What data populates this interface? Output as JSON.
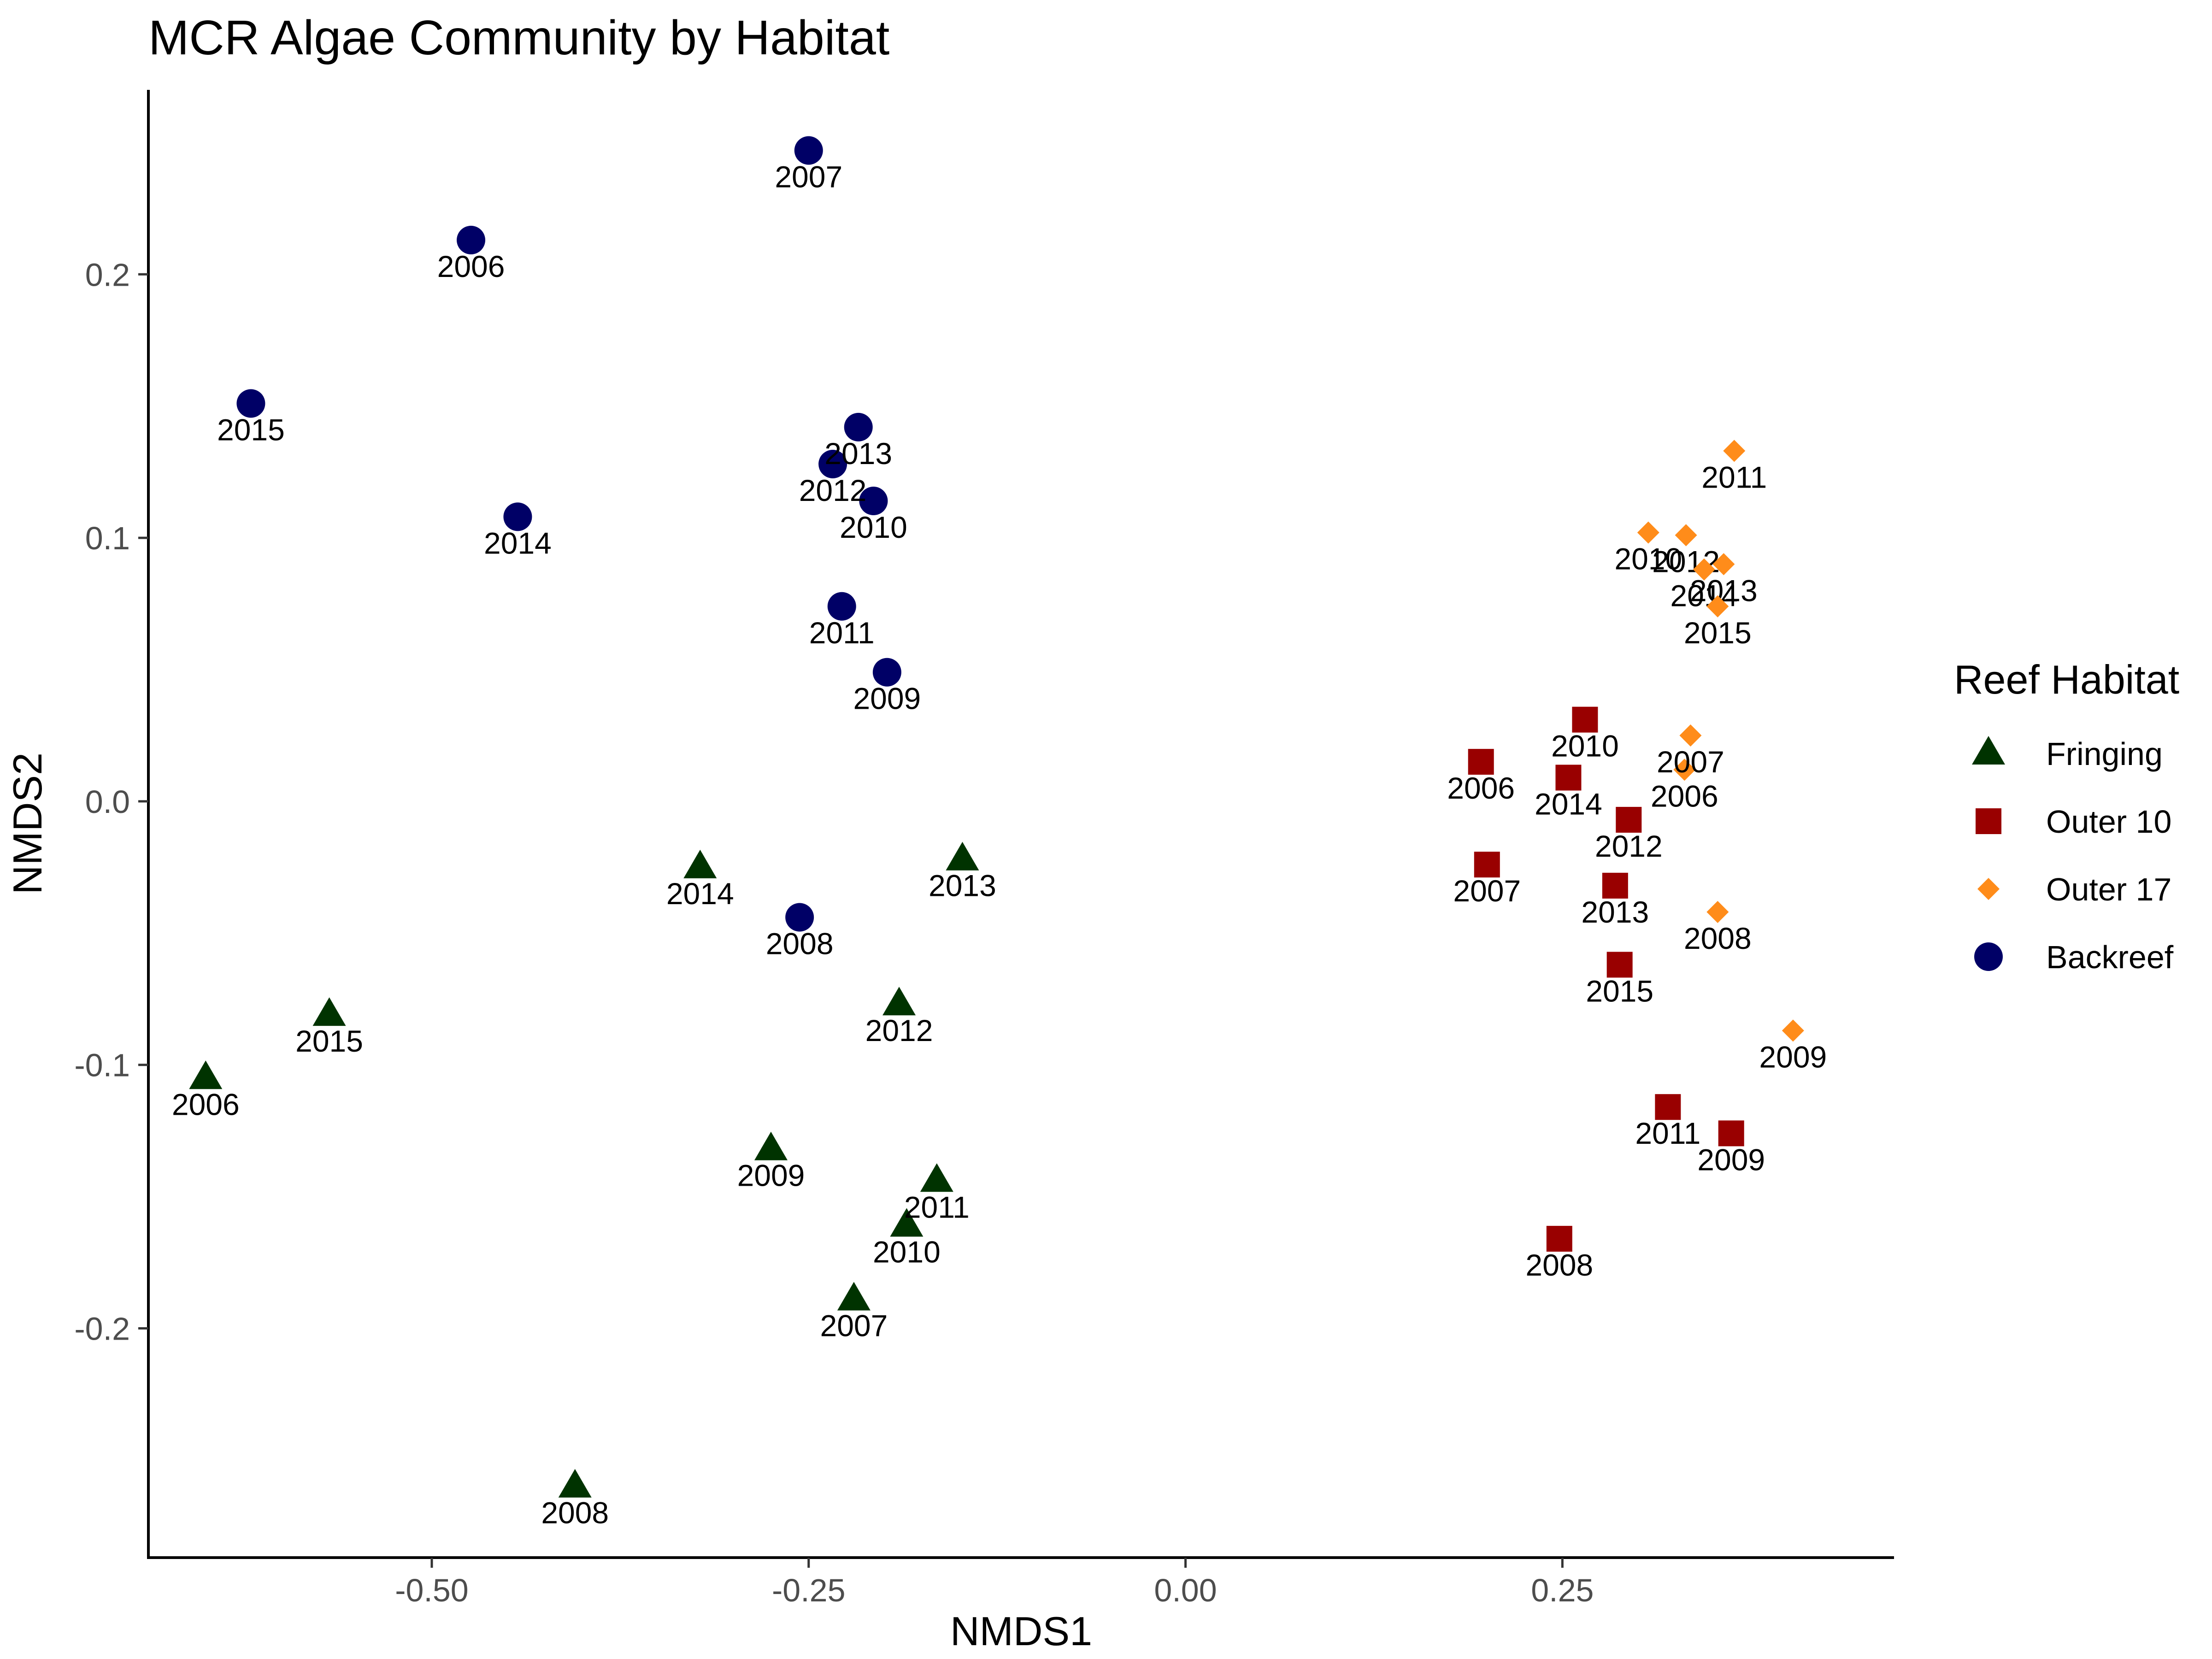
{
  "chart_data": {
    "type": "scatter",
    "title": "MCR Algae Community by Habitat",
    "xlabel": "NMDS1",
    "ylabel": "NMDS2",
    "xlim": [
      -0.688,
      0.47
    ],
    "ylim": [
      -0.287,
      0.27
    ],
    "x_ticks": [
      -0.5,
      -0.25,
      0.0,
      0.25
    ],
    "x_tick_labels": [
      "-0.50",
      "-0.25",
      "0.00",
      "0.25"
    ],
    "y_ticks": [
      -0.2,
      -0.1,
      0.0,
      0.1,
      0.2
    ],
    "y_tick_labels": [
      "-0.2",
      "-0.1",
      "0.0",
      "0.1",
      "0.2"
    ],
    "grid": false,
    "legend": {
      "title": "Reef Habitat",
      "position": "right"
    },
    "series": [
      {
        "name": "Fringing",
        "color": "#003300",
        "shape": "triangle",
        "points": [
          {
            "x": -0.65,
            "y": -0.105,
            "label": "2006"
          },
          {
            "x": -0.22,
            "y": -0.189,
            "label": "2007"
          },
          {
            "x": -0.405,
            "y": -0.26,
            "label": "2008"
          },
          {
            "x": -0.275,
            "y": -0.132,
            "label": "2009"
          },
          {
            "x": -0.185,
            "y": -0.161,
            "label": "2010"
          },
          {
            "x": -0.165,
            "y": -0.144,
            "label": "2011"
          },
          {
            "x": -0.19,
            "y": -0.077,
            "label": "2012"
          },
          {
            "x": -0.148,
            "y": -0.022,
            "label": "2013"
          },
          {
            "x": -0.322,
            "y": -0.025,
            "label": "2014"
          },
          {
            "x": -0.568,
            "y": -0.081,
            "label": "2015"
          }
        ]
      },
      {
        "name": "Outer 10",
        "color": "#990000",
        "shape": "square",
        "points": [
          {
            "x": 0.196,
            "y": 0.015,
            "label": "2006"
          },
          {
            "x": 0.2,
            "y": -0.024,
            "label": "2007"
          },
          {
            "x": 0.248,
            "y": -0.166,
            "label": "2008"
          },
          {
            "x": 0.362,
            "y": -0.126,
            "label": "2009"
          },
          {
            "x": 0.265,
            "y": 0.031,
            "label": "2010"
          },
          {
            "x": 0.32,
            "y": -0.116,
            "label": "2011"
          },
          {
            "x": 0.294,
            "y": -0.007,
            "label": "2012"
          },
          {
            "x": 0.285,
            "y": -0.032,
            "label": "2013"
          },
          {
            "x": 0.254,
            "y": 0.009,
            "label": "2014"
          },
          {
            "x": 0.288,
            "y": -0.062,
            "label": "2015"
          }
        ]
      },
      {
        "name": "Outer 17",
        "color": "#ff8c1a",
        "shape": "diamond",
        "points": [
          {
            "x": 0.331,
            "y": 0.012,
            "label": "2006"
          },
          {
            "x": 0.335,
            "y": 0.025,
            "label": "2007"
          },
          {
            "x": 0.353,
            "y": -0.042,
            "label": "2008"
          },
          {
            "x": 0.403,
            "y": -0.087,
            "label": "2009"
          },
          {
            "x": 0.307,
            "y": 0.102,
            "label": "2010"
          },
          {
            "x": 0.364,
            "y": 0.133,
            "label": "2011"
          },
          {
            "x": 0.332,
            "y": 0.101,
            "label": "2012"
          },
          {
            "x": 0.357,
            "y": 0.09,
            "label": "2013"
          },
          {
            "x": 0.344,
            "y": 0.088,
            "label": "2014"
          },
          {
            "x": 0.353,
            "y": 0.074,
            "label": "2015"
          }
        ]
      },
      {
        "name": "Backreef",
        "color": "#000066",
        "shape": "circle",
        "points": [
          {
            "x": -0.474,
            "y": 0.213,
            "label": "2006"
          },
          {
            "x": -0.25,
            "y": 0.247,
            "label": "2007"
          },
          {
            "x": -0.256,
            "y": -0.044,
            "label": "2008"
          },
          {
            "x": -0.198,
            "y": 0.049,
            "label": "2009"
          },
          {
            "x": -0.207,
            "y": 0.114,
            "label": "2010"
          },
          {
            "x": -0.228,
            "y": 0.074,
            "label": "2011"
          },
          {
            "x": -0.234,
            "y": 0.128,
            "label": "2012"
          },
          {
            "x": -0.217,
            "y": 0.142,
            "label": "2013"
          },
          {
            "x": -0.443,
            "y": 0.108,
            "label": "2014"
          },
          {
            "x": -0.62,
            "y": 0.151,
            "label": "2015"
          }
        ]
      }
    ]
  }
}
